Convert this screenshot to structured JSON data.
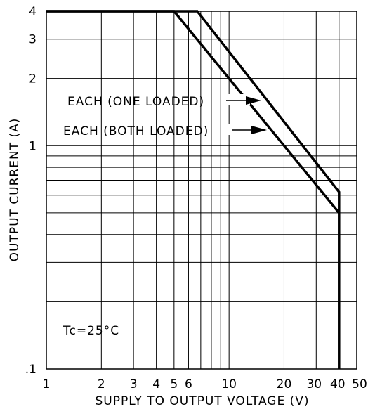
{
  "chart_data": {
    "type": "line",
    "xlabel": "SUPPLY TO OUTPUT VOLTAGE (V)",
    "ylabel": "OUTPUT CURRENT (A)",
    "x_scale": "log",
    "y_scale": "log",
    "xlim": [
      1,
      50
    ],
    "ylim": [
      0.1,
      4
    ],
    "grid": true,
    "x_ticks": [
      {
        "value": 1,
        "label": "1"
      },
      {
        "value": 2,
        "label": "2"
      },
      {
        "value": 3,
        "label": "3"
      },
      {
        "value": 4,
        "label": "4"
      },
      {
        "value": 5,
        "label": "5"
      },
      {
        "value": 6,
        "label": "6"
      },
      {
        "value": 10,
        "label": "10"
      },
      {
        "value": 20,
        "label": "20"
      },
      {
        "value": 30,
        "label": "30"
      },
      {
        "value": 40,
        "label": "40"
      },
      {
        "value": 50,
        "label": "50"
      }
    ],
    "y_ticks": [
      {
        "value": 0.1,
        "label": ".1"
      },
      {
        "value": 1,
        "label": "1"
      },
      {
        "value": 2,
        "label": "2"
      },
      {
        "value": 3,
        "label": "3"
      },
      {
        "value": 4,
        "label": "4"
      }
    ],
    "x_grid": [
      1,
      2,
      3,
      4,
      5,
      6,
      7,
      8,
      9,
      10,
      20,
      30,
      40,
      50
    ],
    "y_grid": [
      0.1,
      0.2,
      0.3,
      0.4,
      0.5,
      0.6,
      0.7,
      0.8,
      0.9,
      1,
      2,
      3,
      4
    ],
    "series": [
      {
        "name": "EACH (ONE LOADED)",
        "x": [
          1,
          6.7,
          40,
          40
        ],
        "y": [
          4,
          4,
          0.62,
          0.1
        ]
      },
      {
        "name": "EACH (BOTH LOADED)",
        "x": [
          1,
          5,
          40
        ],
        "y": [
          4,
          4,
          0.5
        ]
      }
    ],
    "annotations": [
      {
        "text": "EACH (ONE LOADED)",
        "series": 0
      },
      {
        "text": "EACH (BOTH LOADED)",
        "series": 1
      },
      {
        "text": "Tc=25°C"
      }
    ]
  }
}
